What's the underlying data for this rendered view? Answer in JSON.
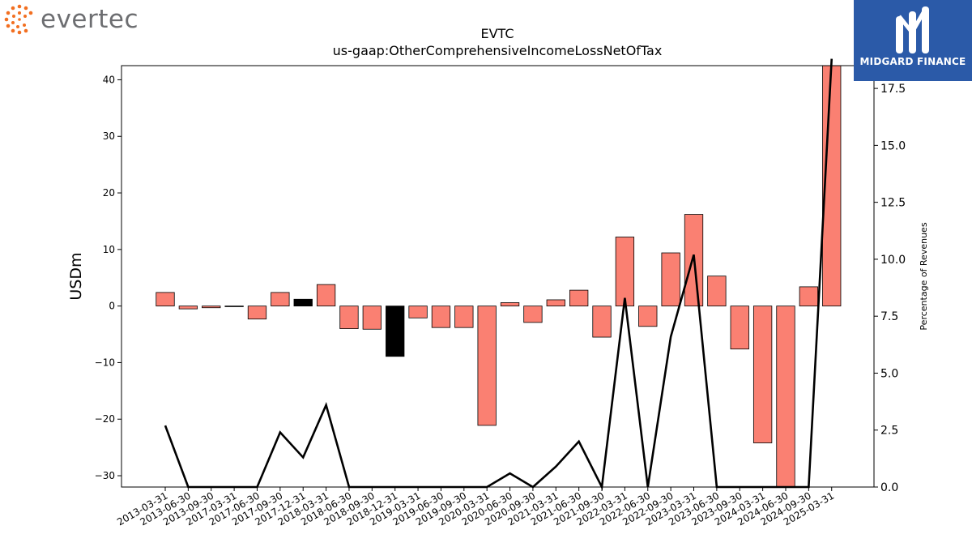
{
  "branding": {
    "left_logo": "evertec",
    "right_logo": "MIDGARD FINANCE",
    "accent_orange": "#f26f21",
    "right_bg": "#2b5aa8"
  },
  "chart_data": {
    "type": "bar",
    "title": "EVTC",
    "subtitle": "us-gaap:OtherComprehensiveIncomeLossNetOfTax",
    "ylabel": "USDm",
    "y2label": "Percentage of Revenues",
    "ylim": [
      -32,
      42.5
    ],
    "y2lim": [
      0,
      18.5
    ],
    "yticks": [
      "−30",
      "−20",
      "−10",
      "0",
      "10",
      "20",
      "30",
      "40"
    ],
    "y2ticks": [
      "0.0",
      "2.5",
      "5.0",
      "7.5",
      "10.0",
      "12.5",
      "15.0",
      "17.5"
    ],
    "categories": [
      "2013-03-31",
      "2013-06-30",
      "2013-09-30",
      "2017-03-31",
      "2017-06-30",
      "2017-09-30",
      "2017-12-31",
      "2018-03-31",
      "2018-06-30",
      "2018-09-30",
      "2018-12-31",
      "2019-03-31",
      "2019-06-30",
      "2019-09-30",
      "2020-03-31",
      "2020-06-30",
      "2020-09-30",
      "2021-03-31",
      "2021-06-30",
      "2021-09-30",
      "2022-03-31",
      "2022-06-30",
      "2022-09-30",
      "2023-03-31",
      "2023-06-30",
      "2023-09-30",
      "2024-03-31",
      "2024-06-30",
      "2024-09-30",
      "2025-03-31"
    ],
    "series": [
      {
        "type": "bar",
        "values": [
          2.4,
          -0.5,
          -0.3,
          -0.1,
          -2.3,
          2.4,
          1.2,
          3.8,
          -4.0,
          -4.1,
          -8.9,
          -2.1,
          -3.8,
          -3.8,
          -21.1,
          0.6,
          -2.9,
          1.1,
          2.8,
          -5.5,
          12.2,
          -3.6,
          9.4,
          16.2,
          5.3,
          -7.6,
          -24.2,
          -32.0,
          3.4,
          42.5
        ],
        "colors": [
          "#fa8072",
          "#fa8072",
          "#fa8072",
          "#fa8072",
          "#fa8072",
          "#fa8072",
          "#000000",
          "#fa8072",
          "#fa8072",
          "#fa8072",
          "#000000",
          "#fa8072",
          "#fa8072",
          "#fa8072",
          "#fa8072",
          "#fa8072",
          "#fa8072",
          "#fa8072",
          "#fa8072",
          "#fa8072",
          "#fa8072",
          "#fa8072",
          "#fa8072",
          "#fa8072",
          "#fa8072",
          "#fa8072",
          "#fa8072",
          "#fa8072",
          "#fa8072",
          "#fa8072"
        ]
      },
      {
        "type": "line",
        "axis": "right",
        "values": [
          2.7,
          0,
          0,
          0,
          0,
          2.4,
          1.3,
          3.6,
          0,
          0,
          0,
          0,
          0,
          0,
          0,
          0.6,
          0,
          0.9,
          2.0,
          0,
          8.3,
          0,
          6.6,
          10.2,
          0,
          0,
          0,
          0,
          0,
          18.8
        ],
        "color": "#000000"
      }
    ]
  }
}
